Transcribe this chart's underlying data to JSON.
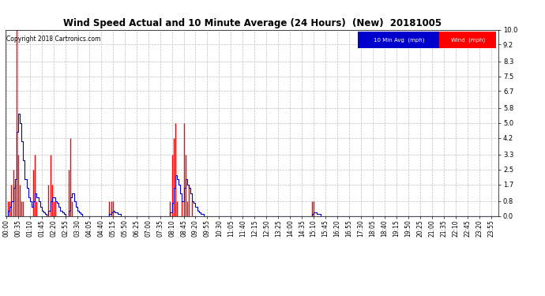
{
  "title": "Wind Speed Actual and 10 Minute Average (24 Hours)  (New)  20181005",
  "copyright": "Copyright 2018 Cartronics.com",
  "legend_blue_label": "10 Min Avg  (mph)",
  "legend_red_label": "Wind  (mph)",
  "y_ticks": [
    0.0,
    0.8,
    1.7,
    2.5,
    3.3,
    4.2,
    5.0,
    5.8,
    6.7,
    7.5,
    8.3,
    9.2,
    10.0
  ],
  "ylim": [
    0.0,
    10.0
  ],
  "background_color": "#ffffff",
  "grid_color": "#c0c0c0",
  "blue_color": "#0000cc",
  "red_color": "#ff0000",
  "wind_vals": [
    0.0,
    0.8,
    0.8,
    1.7,
    2.5,
    1.7,
    10.0,
    3.3,
    1.7,
    0.8,
    0.8,
    0.0,
    0.0,
    0.0,
    0.0,
    0.0,
    2.5,
    3.3,
    0.8,
    0.0,
    0.0,
    0.0,
    0.0,
    0.0,
    0.0,
    1.7,
    3.3,
    1.7,
    0.8,
    0.8,
    0.0,
    0.0,
    0.0,
    0.0,
    0.0,
    0.0,
    0.0,
    2.5,
    4.2,
    0.8,
    0.0,
    0.0,
    0.0,
    0.0,
    0.0,
    0.0,
    0.0,
    0.0,
    0.0,
    0.0,
    0.0,
    0.0,
    0.0,
    0.0,
    0.0,
    0.0,
    0.0,
    0.0,
    0.0,
    0.0,
    0.0,
    0.8,
    0.8,
    0.8,
    0.0,
    0.0,
    0.0,
    0.0,
    0.0,
    0.0,
    0.0,
    0.0,
    0.0,
    0.0,
    0.0,
    0.0,
    0.0,
    0.0,
    0.0,
    0.0,
    0.0,
    0.0,
    0.0,
    0.0,
    0.0,
    0.0,
    0.0,
    0.0,
    0.0,
    0.0,
    0.0,
    0.0,
    0.0,
    0.0,
    0.0,
    0.0,
    0.0,
    0.8,
    3.3,
    4.2,
    5.0,
    0.8,
    0.0,
    0.0,
    0.8,
    5.0,
    3.3,
    0.8,
    1.7,
    0.0,
    0.8,
    0.0,
    0.0,
    0.0,
    0.0,
    0.0,
    0.0,
    0.0,
    0.0,
    0.0,
    0.0,
    0.0,
    0.0,
    0.0,
    0.0,
    0.0,
    0.0,
    0.0,
    0.0,
    0.0,
    0.0,
    0.0,
    0.0,
    0.0,
    0.0,
    0.0,
    0.0,
    0.0,
    0.0,
    0.0,
    0.0,
    0.0,
    0.0,
    0.0,
    0.0,
    0.0,
    0.0,
    0.0,
    0.0,
    0.0,
    0.0,
    0.0,
    0.0,
    0.0,
    0.0,
    0.0,
    0.0,
    0.0,
    0.0,
    0.0,
    0.0,
    0.0,
    0.0,
    0.0,
    0.0,
    0.0,
    0.0,
    0.0,
    0.0,
    0.0,
    0.0,
    0.0,
    0.0,
    0.0,
    0.0,
    0.0,
    0.0,
    0.0,
    0.0,
    0.0,
    0.0,
    0.8,
    0.8,
    0.0,
    0.0,
    0.0,
    0.0,
    0.0,
    0.0,
    0.0,
    0.0,
    0.0,
    0.0,
    0.0,
    0.0,
    0.0,
    0.0,
    0.0,
    0.0,
    0.0,
    0.0,
    0.0,
    0.0,
    0.0,
    0.0,
    0.0,
    0.0,
    0.0,
    0.0,
    0.0,
    0.0,
    0.0,
    0.0,
    0.0,
    0.0,
    0.0,
    0.0,
    0.0,
    0.0,
    0.0,
    0.0,
    0.0,
    0.0,
    0.0,
    0.0,
    0.0,
    0.0,
    0.0,
    0.0,
    0.0,
    0.0,
    0.0,
    0.0,
    0.0,
    0.0,
    0.0,
    0.0,
    0.0,
    0.0,
    0.0,
    0.0,
    0.0,
    0.0,
    0.0,
    0.0,
    0.0,
    0.0,
    0.0,
    0.0,
    0.0,
    0.0,
    0.0,
    0.0,
    0.0,
    0.0,
    0.0,
    0.0,
    0.0,
    0.0,
    0.0,
    0.0,
    0.0,
    0.0,
    0.0,
    0.0,
    0.0,
    0.0,
    0.0,
    0.0,
    0.0,
    0.0,
    0.0,
    0.0,
    0.0,
    0.0,
    0.0,
    0.0,
    0.0,
    0.0,
    0.0,
    0.0,
    0.0,
    0.0,
    0.0,
    0.0,
    0.0,
    0.0,
    0.0,
    0.0,
    0.0,
    0.0,
    0.0
  ],
  "avg_vals": [
    0.0,
    0.3,
    0.5,
    0.8,
    1.5,
    2.0,
    4.5,
    5.5,
    5.0,
    4.0,
    3.0,
    2.0,
    1.5,
    1.0,
    0.8,
    0.5,
    0.8,
    1.2,
    1.0,
    0.8,
    0.5,
    0.3,
    0.2,
    0.1,
    0.0,
    0.3,
    0.8,
    1.0,
    1.0,
    0.8,
    0.7,
    0.5,
    0.3,
    0.2,
    0.1,
    0.0,
    0.0,
    0.3,
    1.0,
    1.2,
    0.8,
    0.5,
    0.3,
    0.2,
    0.1,
    0.0,
    0.0,
    0.0,
    0.0,
    0.0,
    0.0,
    0.0,
    0.0,
    0.0,
    0.0,
    0.0,
    0.0,
    0.0,
    0.0,
    0.0,
    0.0,
    0.1,
    0.2,
    0.3,
    0.2,
    0.2,
    0.1,
    0.1,
    0.0,
    0.0,
    0.0,
    0.0,
    0.0,
    0.0,
    0.0,
    0.0,
    0.0,
    0.0,
    0.0,
    0.0,
    0.0,
    0.0,
    0.0,
    0.0,
    0.0,
    0.0,
    0.0,
    0.0,
    0.0,
    0.0,
    0.0,
    0.0,
    0.0,
    0.0,
    0.0,
    0.0,
    0.0,
    0.2,
    0.7,
    1.5,
    2.2,
    2.0,
    1.7,
    1.2,
    0.8,
    1.5,
    2.0,
    1.7,
    1.5,
    1.2,
    0.8,
    0.7,
    0.5,
    0.3,
    0.2,
    0.1,
    0.1,
    0.0,
    0.0,
    0.0,
    0.0,
    0.0,
    0.0,
    0.0,
    0.0,
    0.0,
    0.0,
    0.0,
    0.0,
    0.0,
    0.0,
    0.0,
    0.0,
    0.0,
    0.0,
    0.0,
    0.0,
    0.0,
    0.0,
    0.0,
    0.0,
    0.0,
    0.0,
    0.0,
    0.0,
    0.0,
    0.0,
    0.0,
    0.0,
    0.0,
    0.0,
    0.0,
    0.0,
    0.0,
    0.0,
    0.0,
    0.0,
    0.0,
    0.0,
    0.0,
    0.0,
    0.0,
    0.0,
    0.0,
    0.0,
    0.0,
    0.0,
    0.0,
    0.0,
    0.0,
    0.0,
    0.0,
    0.0,
    0.0,
    0.0,
    0.0,
    0.0,
    0.0,
    0.0,
    0.0,
    0.0,
    0.1,
    0.2,
    0.2,
    0.1,
    0.1,
    0.0,
    0.0,
    0.0,
    0.0,
    0.0,
    0.0,
    0.0,
    0.0,
    0.0,
    0.0,
    0.0,
    0.0,
    0.0,
    0.0,
    0.0,
    0.0,
    0.0,
    0.0,
    0.0,
    0.0,
    0.0,
    0.0,
    0.0,
    0.0,
    0.0,
    0.0,
    0.0,
    0.0,
    0.0,
    0.0,
    0.0,
    0.0,
    0.0,
    0.0,
    0.0,
    0.0,
    0.0,
    0.0,
    0.0,
    0.0,
    0.0,
    0.0,
    0.0,
    0.0,
    0.0,
    0.0,
    0.0,
    0.0,
    0.0,
    0.0,
    0.0,
    0.0,
    0.0,
    0.0,
    0.0,
    0.0,
    0.0,
    0.0,
    0.0,
    0.0,
    0.0,
    0.0,
    0.0,
    0.0,
    0.0,
    0.0,
    0.0,
    0.0,
    0.0,
    0.0,
    0.0,
    0.0,
    0.0,
    0.0,
    0.0,
    0.0,
    0.0,
    0.0,
    0.0,
    0.0,
    0.0,
    0.0,
    0.0,
    0.0,
    0.0,
    0.0,
    0.0,
    0.0,
    0.0,
    0.0,
    0.0,
    0.0,
    0.0,
    0.0,
    0.0,
    0.0,
    0.0,
    0.0,
    0.0,
    0.0,
    0.0,
    0.0,
    0.0,
    0.0,
    0.0,
    0.0
  ],
  "x_tick_step": 7,
  "x_labels": [
    "00:00",
    "00:35",
    "01:10",
    "01:45",
    "02:20",
    "02:55",
    "03:30",
    "04:05",
    "04:40",
    "05:15",
    "05:50",
    "06:25",
    "07:00",
    "07:35",
    "08:10",
    "08:45",
    "09:20",
    "09:55",
    "10:30",
    "11:05",
    "11:40",
    "12:15",
    "12:50",
    "13:25",
    "14:00",
    "14:35",
    "15:10",
    "15:45",
    "16:20",
    "16:55",
    "17:30",
    "18:05",
    "18:40",
    "19:15",
    "19:50",
    "20:25",
    "21:00",
    "21:35",
    "22:10",
    "22:45",
    "23:20",
    "23:55"
  ]
}
